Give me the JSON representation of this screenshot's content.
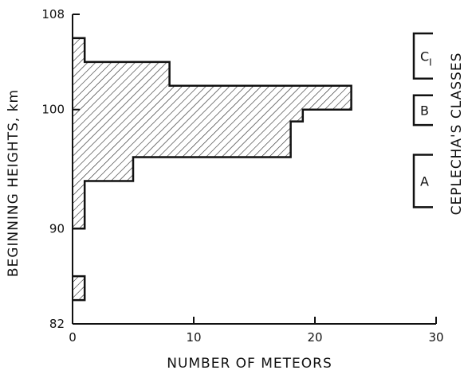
{
  "chart_data": {
    "type": "bar",
    "orientation": "horizontal",
    "xlabel": "NUMBER OF METEORS",
    "ylabel": "BEGINNING HEIGHTS, km",
    "xlim": [
      0,
      30
    ],
    "ylim": [
      82,
      108
    ],
    "x_ticks": [
      0,
      10,
      20,
      30
    ],
    "y_ticks": [
      82,
      90,
      100,
      108
    ],
    "grid": false,
    "fill": "diagonal hatch",
    "bins": [
      {
        "y0": 84,
        "y1": 86,
        "count": 1
      },
      {
        "y0": 90,
        "y1": 94,
        "count": 1
      },
      {
        "y0": 94,
        "y1": 96,
        "count": 5
      },
      {
        "y0": 96,
        "y1": 99,
        "count": 18
      },
      {
        "y0": 99,
        "y1": 100,
        "count": 19
      },
      {
        "y0": 100,
        "y1": 102,
        "count": 23
      },
      {
        "y0": 102,
        "y1": 104,
        "count": 8
      },
      {
        "y0": 104,
        "y1": 106,
        "count": 1
      }
    ],
    "classes_title": "CEPLECHA'S CLASSES",
    "classes": [
      {
        "label": "A",
        "y0": 91.8,
        "y1": 96.2
      },
      {
        "label": "B",
        "y0": 98.7,
        "y1": 101.2
      },
      {
        "label": "C",
        "subscript": "I",
        "y0": 102.6,
        "y1": 106.4
      }
    ]
  }
}
